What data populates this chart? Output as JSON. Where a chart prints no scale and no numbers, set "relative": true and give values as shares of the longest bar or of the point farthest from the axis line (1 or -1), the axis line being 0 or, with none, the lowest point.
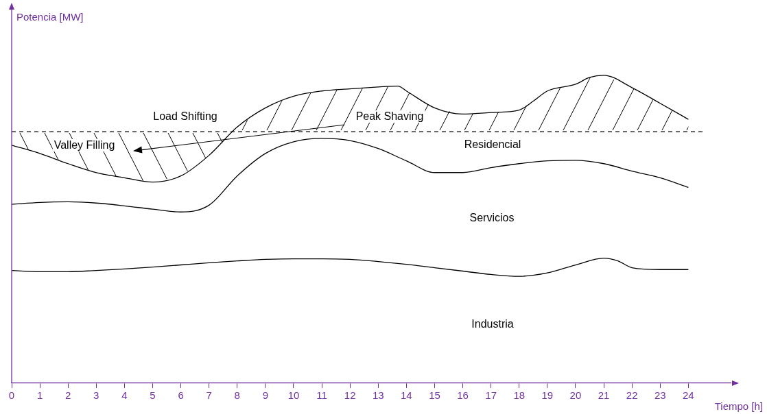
{
  "chart_data": {
    "type": "line",
    "relative": true,
    "xlabel": "Tiempo [h]",
    "xlim": [
      0,
      25.5
    ],
    "xticks": [
      0,
      1,
      2,
      3,
      4,
      5,
      6,
      7,
      8,
      9,
      10,
      11,
      12,
      13,
      14,
      15,
      16,
      17,
      18,
      19,
      20,
      21,
      22,
      23,
      24
    ],
    "grid": false,
    "legend": false,
    "marker": "none",
    "line_style": "solid",
    "series": [
      {
        "color": "#000000",
        "x": [
          0,
          1,
          2,
          3,
          4,
          5,
          6,
          7,
          8,
          9,
          10,
          11,
          12,
          13,
          13.7,
          14,
          15,
          16,
          17,
          18,
          18.5,
          19,
          20,
          20.5,
          21,
          22,
          23,
          24
        ],
        "values": [
          0.773,
          0.746,
          0.713,
          0.684,
          0.667,
          0.653,
          0.673,
          0.74,
          0.832,
          0.894,
          0.932,
          0.949,
          0.956,
          0.962,
          0.965,
          0.949,
          0.894,
          0.874,
          0.879,
          0.887,
          0.916,
          0.949,
          0.971,
          0.993,
          1,
          0.96,
          0.909,
          0.857
        ]
      },
      {
        "color": "#000000",
        "x": [
          0,
          1,
          2,
          3,
          4,
          5,
          6,
          7,
          8,
          9,
          10,
          11,
          12,
          13,
          14,
          15,
          16,
          17,
          18,
          19,
          20,
          21,
          22,
          23,
          24
        ],
        "values": [
          0.581,
          0.587,
          0.589,
          0.585,
          0.576,
          0.565,
          0.556,
          0.578,
          0.673,
          0.746,
          0.784,
          0.795,
          0.788,
          0.762,
          0.722,
          0.684,
          0.684,
          0.7,
          0.713,
          0.722,
          0.724,
          0.713,
          0.689,
          0.667,
          0.636
        ]
      },
      {
        "color": "#000000",
        "x": [
          0,
          1,
          2,
          3,
          4,
          5,
          6,
          7,
          8,
          9,
          10,
          11,
          12,
          13,
          14,
          15,
          16,
          17,
          18,
          19,
          20,
          21,
          21.5,
          22,
          23,
          24
        ],
        "values": [
          0.366,
          0.362,
          0.362,
          0.366,
          0.371,
          0.377,
          0.384,
          0.391,
          0.397,
          0.402,
          0.404,
          0.404,
          0.402,
          0.395,
          0.386,
          0.375,
          0.364,
          0.353,
          0.347,
          0.358,
          0.384,
          0.406,
          0.397,
          0.375,
          0.369,
          0.369
        ]
      }
    ],
    "ref_lines": [
      {
        "axis": "y",
        "value": 0.817,
        "color": "#000000",
        "line_style": "dashed"
      }
    ],
    "annotations": [
      "Load Shifting",
      "Peak Shaving",
      "Valley Filling",
      "Residencial",
      "Servicios",
      "Industria",
      "Potencia [MW]"
    ]
  }
}
